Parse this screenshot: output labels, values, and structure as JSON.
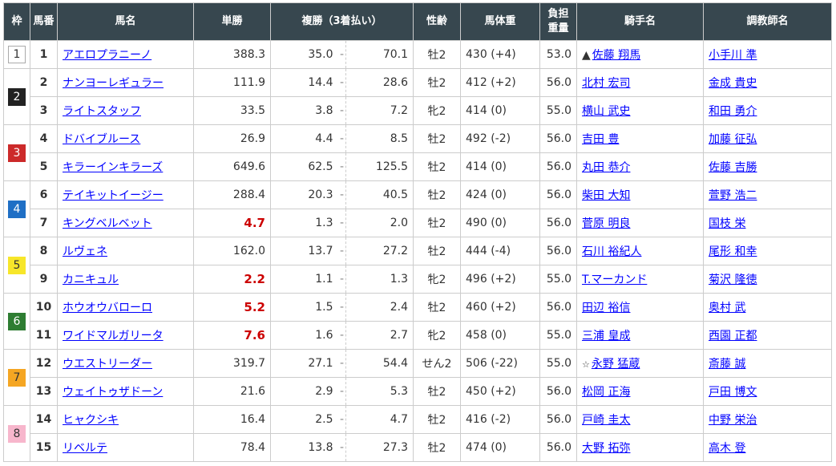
{
  "headers": {
    "waku": "枠",
    "num": "馬番",
    "name": "馬名",
    "win": "単勝",
    "place": "複勝（3着払い）",
    "sex": "性齢",
    "weight": "馬体重",
    "burden": "負担重量",
    "jockey": "騎手名",
    "trainer": "調教師名"
  },
  "waku_colors": {
    "1": "#ffffff",
    "2": "#222222",
    "3": "#cc2a2a",
    "4": "#1f6fc5",
    "5": "#f7e62a",
    "6": "#2e7d32",
    "7": "#f5a623",
    "8": "#f7b6cc"
  },
  "waku_text_colors": {
    "1": "#333333",
    "2": "#ffffff",
    "3": "#ffffff",
    "4": "#ffffff",
    "5": "#333333",
    "6": "#ffffff",
    "7": "#333333",
    "8": "#333333"
  },
  "rows": [
    {
      "waku": "1",
      "num": "1",
      "name": "アエロプラニーノ",
      "win": "388.3",
      "hot": false,
      "pmin": "35.0",
      "pmax": "70.1",
      "sex": "牡2",
      "weight": "430 (+4)",
      "burden": "53.0",
      "mark": "▲",
      "jockey": "佐藤 翔馬",
      "trainer": "小手川 準"
    },
    {
      "waku": "2",
      "num": "2",
      "name": "ナンヨーレギュラー",
      "win": "111.9",
      "hot": false,
      "pmin": "14.4",
      "pmax": "28.6",
      "sex": "牡2",
      "weight": "412 (+2)",
      "burden": "56.0",
      "mark": "",
      "jockey": "北村 宏司",
      "trainer": "金成 貴史"
    },
    {
      "waku": "2",
      "num": "3",
      "name": "ライトスタッフ",
      "win": "33.5",
      "hot": false,
      "pmin": "3.8",
      "pmax": "7.2",
      "sex": "牝2",
      "weight": "414 (0)",
      "burden": "55.0",
      "mark": "",
      "jockey": "横山 武史",
      "trainer": "和田 勇介"
    },
    {
      "waku": "3",
      "num": "4",
      "name": "ドバイブルース",
      "win": "26.9",
      "hot": false,
      "pmin": "4.4",
      "pmax": "8.5",
      "sex": "牡2",
      "weight": "492 (-2)",
      "burden": "56.0",
      "mark": "",
      "jockey": "吉田 豊",
      "trainer": "加藤 征弘"
    },
    {
      "waku": "3",
      "num": "5",
      "name": "キラーインキラーズ",
      "win": "649.6",
      "hot": false,
      "pmin": "62.5",
      "pmax": "125.5",
      "sex": "牡2",
      "weight": "414 (0)",
      "burden": "56.0",
      "mark": "",
      "jockey": "丸田 恭介",
      "trainer": "佐藤 吉勝"
    },
    {
      "waku": "4",
      "num": "6",
      "name": "テイキットイージー",
      "win": "288.4",
      "hot": false,
      "pmin": "20.3",
      "pmax": "40.5",
      "sex": "牡2",
      "weight": "424 (0)",
      "burden": "56.0",
      "mark": "",
      "jockey": "柴田 大知",
      "trainer": "萱野 浩二"
    },
    {
      "waku": "4",
      "num": "7",
      "name": "キングベルベット",
      "win": "4.7",
      "hot": true,
      "pmin": "1.3",
      "pmax": "2.0",
      "sex": "牡2",
      "weight": "490 (0)",
      "burden": "56.0",
      "mark": "",
      "jockey": "菅原 明良",
      "trainer": "国枝 栄"
    },
    {
      "waku": "5",
      "num": "8",
      "name": "ルヴェネ",
      "win": "162.0",
      "hot": false,
      "pmin": "13.7",
      "pmax": "27.2",
      "sex": "牡2",
      "weight": "444 (-4)",
      "burden": "56.0",
      "mark": "",
      "jockey": "石川 裕紀人",
      "trainer": "尾形 和幸"
    },
    {
      "waku": "5",
      "num": "9",
      "name": "カニキュル",
      "win": "2.2",
      "hot": true,
      "pmin": "1.1",
      "pmax": "1.3",
      "sex": "牝2",
      "weight": "496 (+2)",
      "burden": "55.0",
      "mark": "",
      "jockey": "T.マーカンド",
      "trainer": "菊沢 隆徳"
    },
    {
      "waku": "6",
      "num": "10",
      "name": "ホウオウバローロ",
      "win": "5.2",
      "hot": true,
      "pmin": "1.5",
      "pmax": "2.4",
      "sex": "牡2",
      "weight": "460 (+2)",
      "burden": "56.0",
      "mark": "",
      "jockey": "田辺 裕信",
      "trainer": "奥村 武"
    },
    {
      "waku": "6",
      "num": "11",
      "name": "ワイドマルガリータ",
      "win": "7.6",
      "hot": true,
      "pmin": "1.6",
      "pmax": "2.7",
      "sex": "牝2",
      "weight": "458 (0)",
      "burden": "55.0",
      "mark": "",
      "jockey": "三浦 皇成",
      "trainer": "西園 正都"
    },
    {
      "waku": "7",
      "num": "12",
      "name": "ウエストリーダー",
      "win": "319.7",
      "hot": false,
      "pmin": "27.1",
      "pmax": "54.4",
      "sex": "せん2",
      "weight": "506 (-22)",
      "burden": "55.0",
      "mark": "☆",
      "jockey": "永野 猛蔵",
      "trainer": "斎藤 誠"
    },
    {
      "waku": "7",
      "num": "13",
      "name": "ウェイトゥザドーン",
      "win": "21.6",
      "hot": false,
      "pmin": "2.9",
      "pmax": "5.3",
      "sex": "牡2",
      "weight": "450 (+2)",
      "burden": "56.0",
      "mark": "",
      "jockey": "松岡 正海",
      "trainer": "戸田 博文"
    },
    {
      "waku": "8",
      "num": "14",
      "name": "ヒャクシキ",
      "win": "16.4",
      "hot": false,
      "pmin": "2.5",
      "pmax": "4.7",
      "sex": "牡2",
      "weight": "416 (-2)",
      "burden": "56.0",
      "mark": "",
      "jockey": "戸崎 圭太",
      "trainer": "中野 栄治"
    },
    {
      "waku": "8",
      "num": "15",
      "name": "リベルテ",
      "win": "78.4",
      "hot": false,
      "pmin": "13.8",
      "pmax": "27.3",
      "sex": "牡2",
      "weight": "474 (0)",
      "burden": "56.0",
      "mark": "",
      "jockey": "大野 拓弥",
      "trainer": "高木 登"
    }
  ],
  "dash": "-"
}
